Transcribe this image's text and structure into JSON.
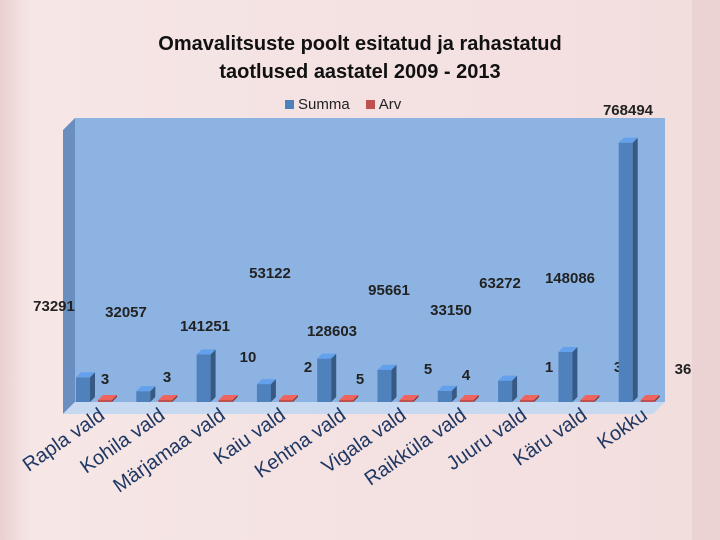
{
  "chart_data": {
    "type": "bar",
    "title": "Omavalitsuste poolt esitatud ja rahastatud taotlused aastatel 2009 - 2013",
    "title_lines": [
      "Omavalitsuste poolt esitatud ja rahastatud",
      "taotlused  aastatel 2009 - 2013"
    ],
    "categories": [
      "Rapla vald",
      "Kohila vald",
      "Märjamaa vald",
      "Kaiu vald",
      "Kehtna vald",
      "Vigala vald",
      "Raikküla vald",
      "Juuru vald",
      "Käru vald",
      "Kokku"
    ],
    "series": [
      {
        "name": "Summa",
        "color": "#4f81bd",
        "values": [
          73291,
          32057,
          141251,
          53122,
          128603,
          95661,
          33150,
          63272,
          148086,
          768494
        ]
      },
      {
        "name": "Arv",
        "color": "#c0504d",
        "values": [
          3,
          3,
          10,
          2,
          5,
          5,
          4,
          1,
          3,
          36
        ]
      }
    ],
    "value_labels": {
      "summa": [
        "73291",
        "32057",
        "141251",
        "53122",
        "128603",
        "95661",
        "33150",
        "63272",
        "148086",
        "768494"
      ],
      "arv": [
        "3",
        "3",
        "10",
        "2",
        "5",
        "5",
        "4",
        "1",
        "3",
        "36"
      ]
    },
    "ylim": [
      0,
      800000
    ],
    "legend_position": "top-center",
    "grid": false
  },
  "colors": {
    "plot_wall": "#8db3e2",
    "plot_side": "#6a8ebf",
    "floor": "#c6d9f1",
    "summa": "#4f81bd",
    "arv": "#c0504d"
  }
}
